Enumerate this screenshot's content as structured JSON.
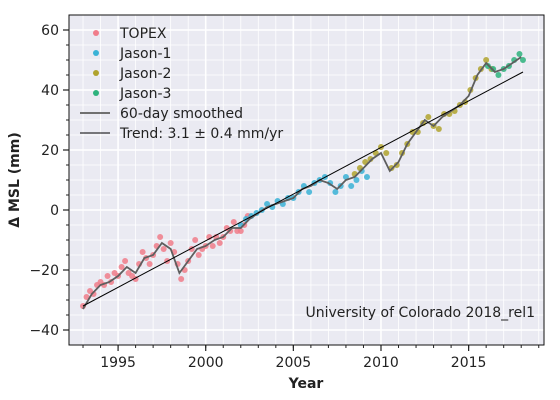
{
  "chart_data": {
    "type": "scatter",
    "title": "",
    "xlabel": "Year",
    "ylabel": "Δ MSL (mm)",
    "xlim": [
      1992.2,
      2019.3
    ],
    "ylim": [
      -45,
      65
    ],
    "xticks": [
      1995,
      2000,
      2005,
      2010,
      2015
    ],
    "yticks": [
      -40,
      -20,
      0,
      20,
      40,
      60
    ],
    "grid": true,
    "legend_position": "top-left",
    "series": [
      {
        "name": "TOPEX",
        "kind": "points",
        "color": "#f07c8a",
        "x": [
          1993.0,
          1993.2,
          1993.4,
          1993.6,
          1993.8,
          1994.0,
          1994.2,
          1994.4,
          1994.6,
          1994.8,
          1995.0,
          1995.2,
          1995.4,
          1995.6,
          1995.8,
          1996.0,
          1996.2,
          1996.4,
          1996.6,
          1996.8,
          1997.0,
          1997.2,
          1997.4,
          1997.6,
          1997.8,
          1998.0,
          1998.2,
          1998.4,
          1998.6,
          1998.8,
          1999.0,
          1999.2,
          1999.4,
          1999.6,
          1999.8,
          2000.0,
          2000.2,
          2000.4,
          2000.6,
          2000.8,
          2001.0,
          2001.2,
          2001.4,
          2001.6,
          2001.8,
          2002.0,
          2002.2,
          2002.4
        ],
        "y": [
          -32,
          -29,
          -27,
          -28,
          -25,
          -24,
          -25,
          -22,
          -24,
          -21,
          -22,
          -19,
          -17,
          -21,
          -22,
          -23,
          -18,
          -14,
          -16,
          -18,
          -15,
          -12,
          -9,
          -13,
          -17,
          -11,
          -14,
          -18,
          -23,
          -20,
          -17,
          -13,
          -10,
          -15,
          -13,
          -12,
          -9,
          -12,
          -9,
          -11,
          -9,
          -6,
          -7,
          -4,
          -7,
          -7,
          -5,
          -2
        ]
      },
      {
        "name": "Jason-1",
        "kind": "points",
        "color": "#3ab2d6",
        "x": [
          2002.0,
          2002.3,
          2002.6,
          2002.9,
          2003.2,
          2003.5,
          2003.8,
          2004.1,
          2004.4,
          2004.7,
          2005.0,
          2005.3,
          2005.6,
          2005.9,
          2006.2,
          2006.5,
          2006.8,
          2007.1,
          2007.4,
          2007.7,
          2008.0,
          2008.3,
          2008.6,
          2008.9,
          2009.2
        ],
        "y": [
          -5,
          -3,
          -2,
          -1,
          0,
          2,
          1,
          3,
          2,
          4,
          4,
          6,
          8,
          6,
          9,
          10,
          11,
          9,
          6,
          8,
          11,
          8,
          10,
          13,
          11
        ]
      },
      {
        "name": "Jason-2",
        "kind": "points",
        "color": "#b0a32e",
        "x": [
          2008.5,
          2008.8,
          2009.1,
          2009.4,
          2009.7,
          2010.0,
          2010.3,
          2010.6,
          2010.9,
          2011.2,
          2011.5,
          2011.8,
          2012.1,
          2012.4,
          2012.7,
          2013.0,
          2013.3,
          2013.6,
          2013.9,
          2014.2,
          2014.5,
          2014.8,
          2015.1,
          2015.4,
          2015.7,
          2016.0,
          2016.3
        ],
        "y": [
          12,
          14,
          16,
          17,
          19,
          21,
          19,
          14,
          15,
          19,
          22,
          26,
          26,
          29,
          31,
          28,
          27,
          32,
          32,
          33,
          35,
          36,
          40,
          44,
          47,
          50,
          47
        ]
      },
      {
        "name": "Jason-3",
        "kind": "points",
        "color": "#2db27d",
        "x": [
          2016.1,
          2016.4,
          2016.7,
          2017.0,
          2017.3,
          2017.6,
          2017.9,
          2018.1
        ],
        "y": [
          48,
          47,
          45,
          47,
          48,
          50,
          52,
          50
        ]
      },
      {
        "name": "60-day smoothed",
        "kind": "line",
        "color": "#5e5e5e",
        "x": [
          1993.0,
          1993.5,
          1994.0,
          1994.5,
          1995.0,
          1995.5,
          1996.0,
          1996.5,
          1997.0,
          1997.5,
          1998.0,
          1998.5,
          1999.0,
          1999.5,
          2000.0,
          2000.5,
          2001.0,
          2001.5,
          2002.0,
          2002.5,
          2003.0,
          2003.5,
          2004.0,
          2004.5,
          2005.0,
          2005.5,
          2006.0,
          2006.5,
          2007.0,
          2007.5,
          2008.0,
          2008.5,
          2009.0,
          2009.5,
          2010.0,
          2010.5,
          2011.0,
          2011.5,
          2012.0,
          2012.5,
          2013.0,
          2013.5,
          2014.0,
          2014.5,
          2015.0,
          2015.5,
          2016.0,
          2016.5,
          2017.0,
          2017.5,
          2018.0
        ],
        "y": [
          -33,
          -28,
          -25,
          -24,
          -22,
          -19,
          -21,
          -16,
          -15,
          -11,
          -13,
          -21,
          -17,
          -13,
          -12,
          -10,
          -9,
          -6,
          -6,
          -3,
          -1,
          1,
          2,
          3,
          4,
          7,
          8,
          10,
          9,
          7,
          10,
          11,
          14,
          17,
          19,
          13,
          16,
          22,
          26,
          30,
          28,
          31,
          33,
          35,
          38,
          45,
          49,
          46,
          47,
          49,
          51
        ]
      },
      {
        "name": "Trend: 3.1 ± 0.4 mm/yr",
        "kind": "trend",
        "color": "#000000",
        "x": [
          1993.0,
          2018.1
        ],
        "y": [
          -32,
          46
        ]
      }
    ],
    "annotations": [
      "University of Colorado 2018_rel1"
    ]
  }
}
